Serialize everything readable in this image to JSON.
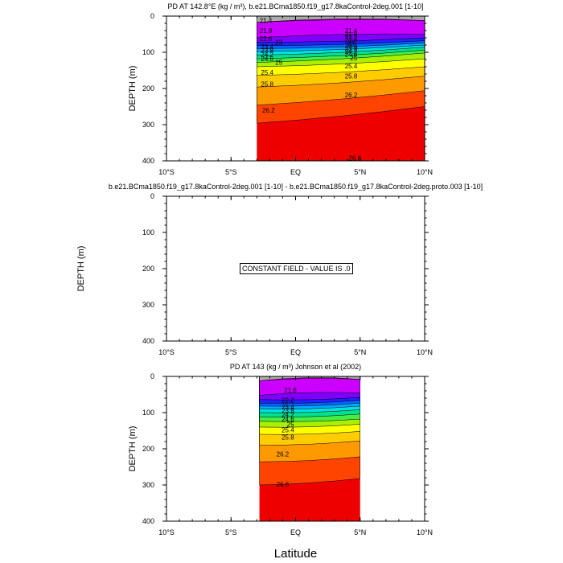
{
  "chart_data": [
    {
      "type": "contour",
      "title": "PD AT 142.8°E (kg / m³), b.e21.BCma1850.f19_g17.8kaControl-2deg.001 [1-10]",
      "ylabel": "DEPTH (m)",
      "xlabel": "",
      "xlim": [
        -10,
        10
      ],
      "ylim": [
        400,
        0
      ],
      "x_ticks": [
        "10°S",
        "5°S",
        "EQ",
        "5°N",
        "10°N"
      ],
      "y_ticks": [
        "0",
        "100",
        "200",
        "300",
        "400"
      ],
      "data_lon_range": [
        -3,
        10
      ],
      "contour_levels": [
        21.4,
        21.8,
        22.2,
        22.6,
        23,
        23.4,
        23.8,
        24.2,
        24.6,
        25,
        25.4,
        25.8,
        26.2,
        26.6
      ],
      "contour_depths_west": [
        17,
        60,
        72,
        82,
        90,
        98,
        108,
        118,
        128,
        140,
        164,
        196,
        246,
        296
      ],
      "contour_depths_east": [
        12,
        50,
        60,
        68,
        74,
        80,
        86,
        94,
        102,
        118,
        140,
        166,
        206,
        250
      ],
      "contour_labels": [
        {
          "text": "21.4",
          "lon": -2.3,
          "depth": 12
        },
        {
          "text": "21.8",
          "lon": -2.3,
          "depth": 40
        },
        {
          "text": "22.6",
          "lon": -2.3,
          "depth": 62
        },
        {
          "text": "23",
          "lon": -1.3,
          "depth": 72
        },
        {
          "text": "23.4",
          "lon": -2.2,
          "depth": 84
        },
        {
          "text": "23.8",
          "lon": -2.2,
          "depth": 94
        },
        {
          "text": "24.2",
          "lon": -2.2,
          "depth": 106
        },
        {
          "text": "24.6",
          "lon": -2.2,
          "depth": 118
        },
        {
          "text": "25",
          "lon": -1.3,
          "depth": 128
        },
        {
          "text": "25.4",
          "lon": -2.2,
          "depth": 155
        },
        {
          "text": "25.8",
          "lon": -2.2,
          "depth": 188
        },
        {
          "text": "26.2",
          "lon": -2.1,
          "depth": 260
        },
        {
          "text": "21.4",
          "lon": 4.3,
          "depth": 40
        },
        {
          "text": "21.8",
          "lon": 4.3,
          "depth": 50
        },
        {
          "text": "22.2",
          "lon": 4.3,
          "depth": 58
        },
        {
          "text": "22.6",
          "lon": 4.3,
          "depth": 66
        },
        {
          "text": "23",
          "lon": 4.3,
          "depth": 74
        },
        {
          "text": "23.4",
          "lon": 4.3,
          "depth": 82
        },
        {
          "text": "23.8",
          "lon": 4.3,
          "depth": 90
        },
        {
          "text": "24.2",
          "lon": 4.3,
          "depth": 98
        },
        {
          "text": "24.6",
          "lon": 4.3,
          "depth": 106
        },
        {
          "text": "25",
          "lon": 4.5,
          "depth": 116
        },
        {
          "text": "25.4",
          "lon": 4.3,
          "depth": 138
        },
        {
          "text": "25.8",
          "lon": 4.3,
          "depth": 166
        },
        {
          "text": "26.2",
          "lon": 4.3,
          "depth": 218
        },
        {
          "text": "26.6",
          "lon": 4.6,
          "depth": 392
        }
      ]
    },
    {
      "type": "contour",
      "title": "b.e21.BCma1850.f19_g17.8kaControl-2deg.001 [1-10] - b.e21.BCma1850.f19_g17.8kaControl-2deg.proto.003 [1-10]",
      "ylabel": "DEPTH (m)",
      "xlabel": "",
      "xlim": [
        -10,
        10
      ],
      "ylim": [
        400,
        0
      ],
      "x_ticks": [
        "10°S",
        "5°S",
        "EQ",
        "5°N",
        "10°N"
      ],
      "y_ticks": [
        "0",
        "100",
        "200",
        "300",
        "400"
      ],
      "annotation": "CONSTANT FIELD - VALUE IS .0"
    },
    {
      "type": "contour",
      "title": "PD AT 143 (kg / m³) Johnson et al (2002)",
      "ylabel": "DEPTH (m)",
      "xlabel": "Latitude",
      "xlim": [
        -10,
        10
      ],
      "ylim": [
        400,
        0
      ],
      "x_ticks": [
        "10°S",
        "5°S",
        "EQ",
        "5°N",
        "10°N"
      ],
      "y_ticks": [
        "0",
        "100",
        "200",
        "300",
        "400"
      ],
      "data_lon_range": [
        -2.8,
        5
      ],
      "contour_levels": [
        21.4,
        21.8,
        22.2,
        22.6,
        23,
        23.4,
        23.8,
        24.2,
        24.6,
        25,
        25.4,
        25.8,
        26.2,
        26.6
      ],
      "contour_depths_west": [
        12,
        52,
        64,
        74,
        82,
        90,
        100,
        112,
        124,
        140,
        160,
        190,
        236,
        300
      ],
      "contour_depths_east": [
        8,
        46,
        58,
        66,
        74,
        82,
        92,
        104,
        118,
        132,
        152,
        178,
        222,
        282
      ],
      "contour_labels": [
        {
          "text": "21.8",
          "lon": -0.4,
          "depth": 38
        },
        {
          "text": "22.2",
          "lon": -0.6,
          "depth": 66
        },
        {
          "text": "23.4",
          "lon": -0.6,
          "depth": 84
        },
        {
          "text": "23.8",
          "lon": -0.6,
          "depth": 94
        },
        {
          "text": "24.2",
          "lon": -0.6,
          "depth": 106
        },
        {
          "text": "24.6",
          "lon": -0.6,
          "depth": 118
        },
        {
          "text": "25",
          "lon": -0.4,
          "depth": 132
        },
        {
          "text": "25.4",
          "lon": -0.6,
          "depth": 148
        },
        {
          "text": "25.8",
          "lon": -0.6,
          "depth": 168
        },
        {
          "text": "26.2",
          "lon": -1.0,
          "depth": 214
        },
        {
          "text": "26.6",
          "lon": -1.0,
          "depth": 298
        }
      ]
    }
  ]
}
